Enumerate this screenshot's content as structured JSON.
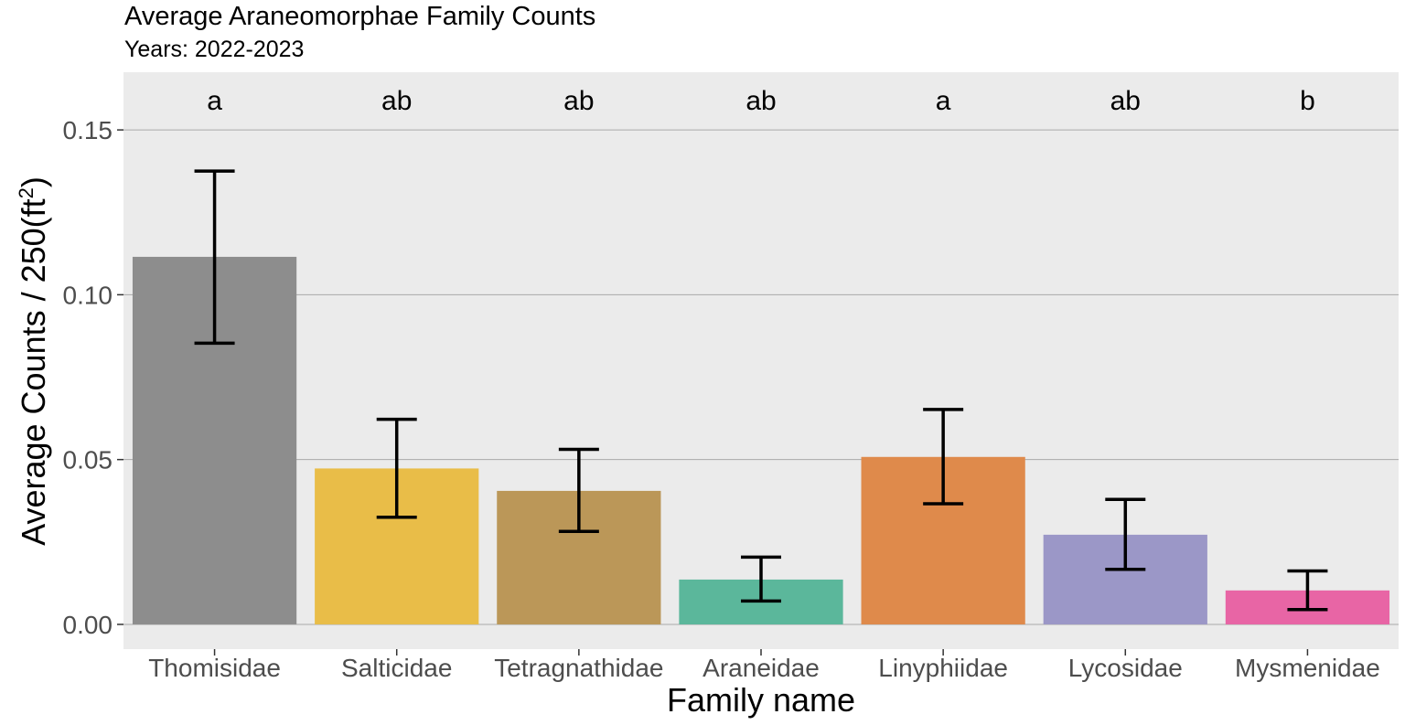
{
  "chart_data": {
    "type": "bar",
    "title": "Average Araneomorphae Family Counts",
    "subtitle": "Years: 2022-2023",
    "xlabel": "Family name",
    "ylabel": {
      "prefix": "Average Counts / 250(ft",
      "superscript": "2",
      "suffix": ")"
    },
    "categories": [
      "Thomisidae",
      "Salticidae",
      "Tetragnathidae",
      "Araneidae",
      "Linyphiidae",
      "Lycosidae",
      "Mysmenidae"
    ],
    "values": [
      0.1115,
      0.0473,
      0.0405,
      0.0136,
      0.0508,
      0.0272,
      0.0103
    ],
    "error_low": [
      0.0853,
      0.0325,
      0.0282,
      0.0071,
      0.0366,
      0.0167,
      0.0045
    ],
    "error_high": [
      0.1375,
      0.0622,
      0.0531,
      0.0204,
      0.0652,
      0.0379,
      0.0162
    ],
    "group_letters": [
      "a",
      "ab",
      "ab",
      "ab",
      "a",
      "ab",
      "b"
    ],
    "colors": [
      "#8d8d8d",
      "#e9bd48",
      "#bb9758",
      "#5bb79b",
      "#df8a4b",
      "#9b97c7",
      "#e865a5"
    ],
    "yticks": [
      0.0,
      0.05,
      0.1,
      0.15
    ],
    "ytick_labels": [
      "0.00",
      "0.05",
      "0.10",
      "0.15"
    ],
    "ylim": [
      -0.0075,
      0.1675
    ],
    "grid": true,
    "panel_background": "#ebebeb",
    "gridline_color": "#a9a9a9"
  }
}
